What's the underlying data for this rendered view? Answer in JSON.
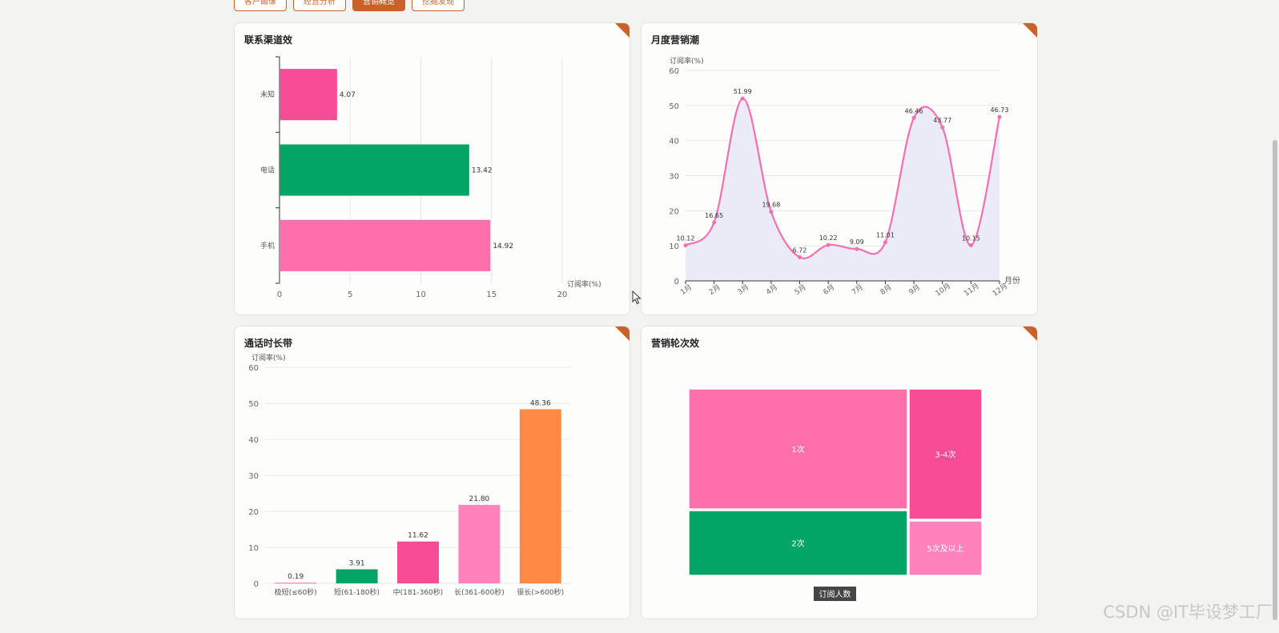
{
  "nav": {
    "tabs": [
      {
        "label": "客户画像",
        "active": false
      },
      {
        "label": "经营分析",
        "active": false
      },
      {
        "label": "营销概览",
        "active": true
      },
      {
        "label": "挖掘发现",
        "active": false
      }
    ]
  },
  "watermark": "CSDN @IT毕设梦工厂",
  "colors": {
    "accent": "#c8622a",
    "pink": "#ff6fab",
    "hotpink": "#f84b95",
    "green": "#03a566",
    "orange": "#ff8a45",
    "lightpink": "#ff82bd"
  },
  "charts": {
    "channel": {
      "title": "联系渠道效",
      "chart_data": {
        "type": "bar",
        "orientation": "horizontal",
        "categories": [
          "未知",
          "电话",
          "手机"
        ],
        "values": [
          4.07,
          13.42,
          14.92
        ],
        "value_labels": [
          "4.07",
          "13.42",
          "14.92"
        ],
        "colors": [
          "#f84b95",
          "#03a566",
          "#ff6fab"
        ],
        "xlabel": "订阅率(%)",
        "xlim": [
          0,
          20
        ],
        "xticks": [
          0,
          5,
          10,
          15,
          20
        ],
        "grid": true
      }
    },
    "monthly": {
      "title": "月度营销潮",
      "chart_data": {
        "type": "area",
        "categories": [
          "1月",
          "2月",
          "3月",
          "4月",
          "5月",
          "6月",
          "7月",
          "8月",
          "9月",
          "10月",
          "11月",
          "12月"
        ],
        "values": [
          10.12,
          16.65,
          51.99,
          19.68,
          6.72,
          10.22,
          9.09,
          11.01,
          46.46,
          43.77,
          10.15,
          46.73
        ],
        "value_labels": [
          "10.12",
          "16.65",
          "51.99",
          "19.68",
          "6.72",
          "10.22",
          "9.09",
          "11.01",
          "46.46",
          "43.77",
          "10.15",
          "46.73"
        ],
        "xlabel": "月份",
        "ylabel": "订阅率(%)",
        "ylim": [
          0,
          60
        ],
        "yticks": [
          0,
          10,
          20,
          30,
          40,
          50,
          60
        ],
        "line_color": "#f56fb0",
        "fill_color": "#e8e9f3",
        "smooth": true,
        "grid": true
      }
    },
    "duration": {
      "title": "通话时长带",
      "chart_data": {
        "type": "bar",
        "categories": [
          "极短(≤60秒)",
          "短(61-180秒)",
          "中(181-360秒)",
          "长(361-600秒)",
          "很长(>600秒)"
        ],
        "values": [
          0.19,
          3.91,
          11.62,
          21.8,
          48.36
        ],
        "value_labels": [
          "0.19",
          "3.91",
          "11.62",
          "21.80",
          "48.36"
        ],
        "colors": [
          "#ff6fab",
          "#03a566",
          "#f84b95",
          "#ff82bd",
          "#ff8a45"
        ],
        "ylabel": "订阅率(%)",
        "ylim": [
          0,
          60
        ],
        "yticks": [
          0,
          10,
          20,
          30,
          40,
          50,
          60
        ],
        "grid": true
      }
    },
    "rounds": {
      "title": "营销轮次效",
      "chart_data": {
        "type": "treemap",
        "metric": "订阅人数",
        "items": [
          {
            "name": "1次",
            "color": "#ff6fab"
          },
          {
            "name": "3-4次",
            "color": "#f84b95"
          },
          {
            "name": "2次",
            "color": "#03a566"
          },
          {
            "name": "5次及以上",
            "color": "#ff82bd"
          }
        ]
      }
    }
  }
}
